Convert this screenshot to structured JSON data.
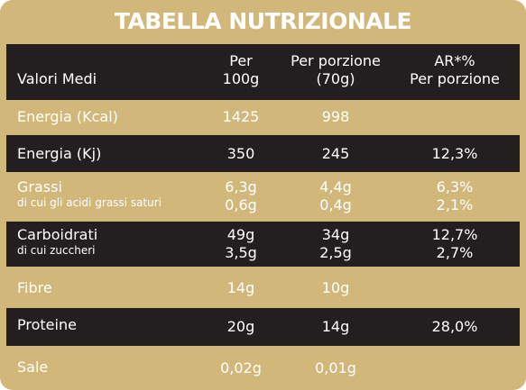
{
  "title": "TABELLA NUTRIZIONALE",
  "header": {
    "col0": "Valori Medi",
    "col1_l1": "Per",
    "col1_l2": "100g",
    "col2_l1": "Per porzione",
    "col2_l2": "(70g)",
    "col3_l1": "AR*%",
    "col3_l2": "Per porzione"
  },
  "rows": [
    {
      "name": "Energia (Kcal)",
      "per100": "1425",
      "portion": "998",
      "ar": ""
    },
    {
      "name": "Energia (Kj)",
      "per100": "350",
      "portion": "245",
      "ar": "12,3%"
    },
    {
      "name": "Grassi",
      "sub": "di cui gli acidi grassi saturi",
      "per100": "6,3g",
      "per100b": "0,6g",
      "portion": "4,4g",
      "portionb": "0,4g",
      "ar": "6,3%",
      "arb": "2,1%"
    },
    {
      "name": "Carboidrati",
      "sub": "di cui zuccheri",
      "per100": "49g",
      "per100b": "3,5g",
      "portion": "34g",
      "portionb": "2,5g",
      "ar": "12,7%",
      "arb": "2,7%"
    },
    {
      "name": "Fibre",
      "per100": "14g",
      "portion": "10g",
      "ar": ""
    },
    {
      "name": "Proteine",
      "per100": "20g",
      "portion": "14g",
      "ar": "28,0%"
    },
    {
      "name": "Sale",
      "per100": "0,02g",
      "portion": "0,01g",
      "ar": ""
    }
  ],
  "colors": {
    "panel": "#d2b77b",
    "dark_row": "#231f20",
    "text": "#ffffff"
  }
}
